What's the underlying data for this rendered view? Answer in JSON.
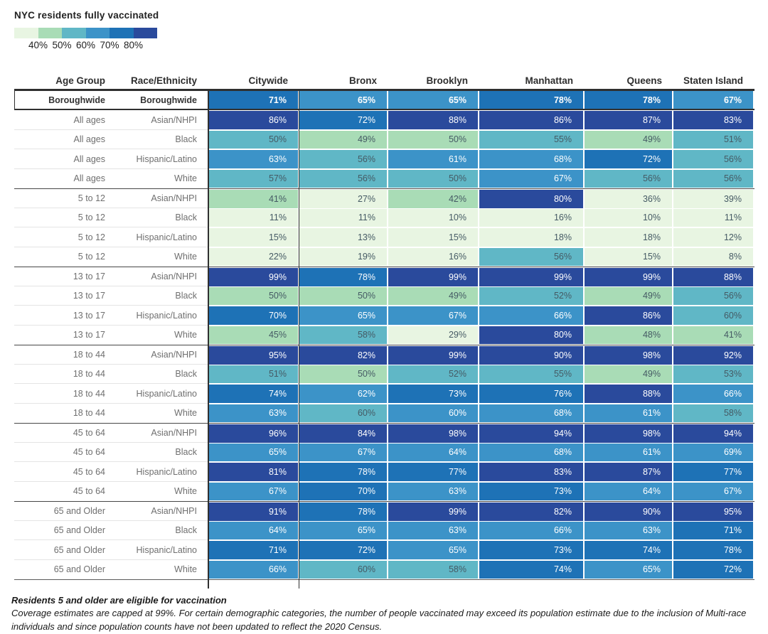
{
  "legend": {
    "title": "NYC residents fully vaccinated",
    "ticks": [
      "40%",
      "50%",
      "60%",
      "70%",
      "80%"
    ]
  },
  "palette": {
    "buckets": [
      "#e8f5e2",
      "#a9dcb6",
      "#60b7c6",
      "#3c93c8",
      "#1e72b6",
      "#2a4a9c"
    ],
    "text_dark": "#455a64",
    "text_light": "#ffffff"
  },
  "chart_data": {
    "type": "heatmap",
    "unit": "%",
    "title": "NYC residents fully vaccinated",
    "legend_scale": [
      40,
      50,
      60,
      70,
      80
    ],
    "columns": [
      "Age Group",
      "Race/Ethnicity",
      "Citywide",
      "Bronx",
      "Brooklyn",
      "Manhattan",
      "Queens",
      "Staten Island"
    ],
    "boroughwide_row": {
      "age": "Boroughwide",
      "race": "Boroughwide",
      "values": [
        71,
        65,
        65,
        78,
        78,
        67
      ],
      "buckets": [
        4,
        3,
        3,
        4,
        4,
        3
      ]
    },
    "rows": [
      {
        "age": "All ages",
        "race": "Asian/NHPI",
        "values": [
          86,
          72,
          88,
          86,
          87,
          83
        ],
        "buckets": [
          5,
          4,
          5,
          5,
          5,
          5
        ],
        "section": false
      },
      {
        "age": "All ages",
        "race": "Black",
        "values": [
          50,
          49,
          50,
          55,
          49,
          51
        ],
        "buckets": [
          2,
          1,
          1,
          2,
          1,
          2
        ],
        "section": false
      },
      {
        "age": "All ages",
        "race": "Hispanic/Latino",
        "values": [
          63,
          56,
          61,
          68,
          72,
          56
        ],
        "buckets": [
          3,
          2,
          3,
          3,
          4,
          2
        ],
        "section": false
      },
      {
        "age": "All ages",
        "race": "White",
        "values": [
          57,
          56,
          50,
          67,
          56,
          56
        ],
        "buckets": [
          2,
          2,
          2,
          3,
          2,
          2
        ],
        "section": false
      },
      {
        "age": "5 to 12",
        "race": "Asian/NHPI",
        "values": [
          41,
          27,
          42,
          80,
          36,
          39
        ],
        "buckets": [
          1,
          0,
          1,
          5,
          0,
          0
        ],
        "section": true
      },
      {
        "age": "5 to 12",
        "race": "Black",
        "values": [
          11,
          11,
          10,
          16,
          10,
          11
        ],
        "buckets": [
          0,
          0,
          0,
          0,
          0,
          0
        ],
        "section": false
      },
      {
        "age": "5 to 12",
        "race": "Hispanic/Latino",
        "values": [
          15,
          13,
          15,
          18,
          18,
          12
        ],
        "buckets": [
          0,
          0,
          0,
          0,
          0,
          0
        ],
        "section": false
      },
      {
        "age": "5 to 12",
        "race": "White",
        "values": [
          22,
          19,
          16,
          56,
          15,
          8
        ],
        "buckets": [
          0,
          0,
          0,
          2,
          0,
          0
        ],
        "section": false
      },
      {
        "age": "13 to 17",
        "race": "Asian/NHPI",
        "values": [
          99,
          78,
          99,
          99,
          99,
          88
        ],
        "buckets": [
          5,
          4,
          5,
          5,
          5,
          5
        ],
        "section": true
      },
      {
        "age": "13 to 17",
        "race": "Black",
        "values": [
          50,
          50,
          49,
          52,
          49,
          56
        ],
        "buckets": [
          1,
          1,
          1,
          2,
          1,
          2
        ],
        "section": false
      },
      {
        "age": "13 to 17",
        "race": "Hispanic/Latino",
        "values": [
          70,
          65,
          67,
          66,
          86,
          60
        ],
        "buckets": [
          4,
          3,
          3,
          3,
          5,
          2
        ],
        "section": false
      },
      {
        "age": "13 to 17",
        "race": "White",
        "values": [
          45,
          58,
          29,
          80,
          48,
          41
        ],
        "buckets": [
          1,
          2,
          0,
          5,
          1,
          1
        ],
        "section": false
      },
      {
        "age": "18 to 44",
        "race": "Asian/NHPI",
        "values": [
          95,
          82,
          99,
          90,
          98,
          92
        ],
        "buckets": [
          5,
          5,
          5,
          5,
          5,
          5
        ],
        "section": true
      },
      {
        "age": "18 to 44",
        "race": "Black",
        "values": [
          51,
          50,
          52,
          55,
          49,
          53
        ],
        "buckets": [
          2,
          1,
          2,
          2,
          1,
          2
        ],
        "section": false
      },
      {
        "age": "18 to 44",
        "race": "Hispanic/Latino",
        "values": [
          74,
          62,
          73,
          76,
          88,
          66
        ],
        "buckets": [
          4,
          3,
          4,
          4,
          5,
          3
        ],
        "section": false
      },
      {
        "age": "18 to 44",
        "race": "White",
        "values": [
          63,
          60,
          60,
          68,
          61,
          58
        ],
        "buckets": [
          3,
          2,
          3,
          3,
          3,
          2
        ],
        "section": false
      },
      {
        "age": "45 to 64",
        "race": "Asian/NHPI",
        "values": [
          96,
          84,
          98,
          94,
          98,
          94
        ],
        "buckets": [
          5,
          5,
          5,
          5,
          5,
          5
        ],
        "section": true
      },
      {
        "age": "45 to 64",
        "race": "Black",
        "values": [
          65,
          67,
          64,
          68,
          61,
          69
        ],
        "buckets": [
          3,
          3,
          3,
          3,
          3,
          3
        ],
        "section": false
      },
      {
        "age": "45 to 64",
        "race": "Hispanic/Latino",
        "values": [
          81,
          78,
          77,
          83,
          87,
          77
        ],
        "buckets": [
          5,
          4,
          4,
          5,
          5,
          4
        ],
        "section": false
      },
      {
        "age": "45 to 64",
        "race": "White",
        "values": [
          67,
          70,
          63,
          73,
          64,
          67
        ],
        "buckets": [
          3,
          4,
          3,
          4,
          3,
          3
        ],
        "section": false
      },
      {
        "age": "65 and Older",
        "race": "Asian/NHPI",
        "values": [
          91,
          78,
          99,
          82,
          90,
          95
        ],
        "buckets": [
          5,
          4,
          5,
          5,
          5,
          5
        ],
        "section": true
      },
      {
        "age": "65 and Older",
        "race": "Black",
        "values": [
          64,
          65,
          63,
          66,
          63,
          71
        ],
        "buckets": [
          3,
          3,
          3,
          3,
          3,
          4
        ],
        "section": false
      },
      {
        "age": "65 and Older",
        "race": "Hispanic/Latino",
        "values": [
          71,
          72,
          65,
          73,
          74,
          78
        ],
        "buckets": [
          4,
          4,
          3,
          4,
          4,
          4
        ],
        "section": false
      },
      {
        "age": "65 and Older",
        "race": "White",
        "values": [
          66,
          60,
          58,
          74,
          65,
          72
        ],
        "buckets": [
          3,
          2,
          2,
          4,
          3,
          4
        ],
        "section": false
      }
    ]
  },
  "footnotes": {
    "line1": "Residents 5 and older are eligible for vaccination",
    "line2": "Coverage estimates are capped at 99%. For certain demographic categories, the number of people vaccinated may exceed its population estimate due to the inclusion of Multi-race individuals and since population counts have not been updated to reflect the 2020 Census."
  }
}
